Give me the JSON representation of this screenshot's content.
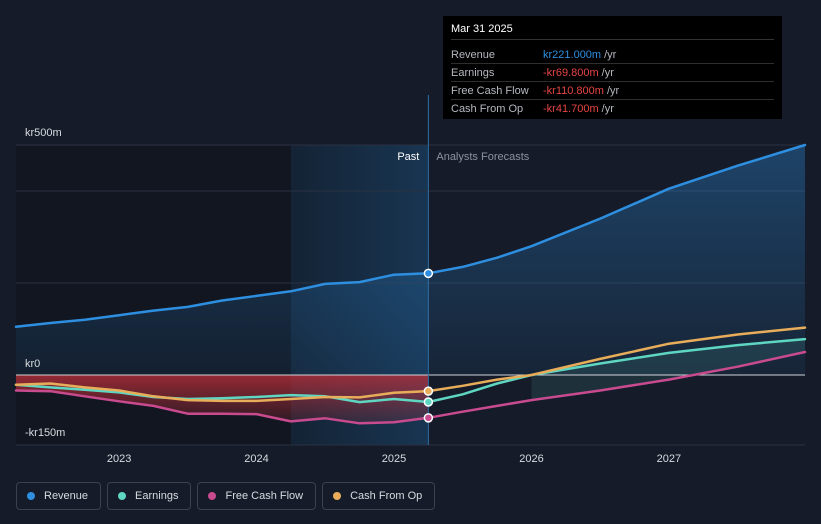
{
  "chart_data": {
    "type": "line",
    "x_axis_ticks": [
      "2023",
      "2024",
      "2025",
      "2026",
      "2027"
    ],
    "y_axis_labels": [
      "kr500m",
      "kr0",
      "-kr150m"
    ],
    "ylim": [
      -150,
      500
    ],
    "xlim": [
      2022.25,
      2027.99
    ],
    "past_label": "Past",
    "forecast_label": "Analysts Forecasts",
    "divider_x": 2025.25,
    "series": [
      {
        "name": "Revenue",
        "color": "#2e8fe0",
        "points": [
          [
            2022.25,
            105
          ],
          [
            2022.5,
            113
          ],
          [
            2022.75,
            120
          ],
          [
            2023.0,
            130
          ],
          [
            2023.25,
            140
          ],
          [
            2023.5,
            148
          ],
          [
            2023.75,
            162
          ],
          [
            2024.0,
            172
          ],
          [
            2024.25,
            182
          ],
          [
            2024.5,
            198
          ],
          [
            2024.75,
            202
          ],
          [
            2025.0,
            218
          ],
          [
            2025.25,
            221
          ],
          [
            2025.5,
            235
          ],
          [
            2025.75,
            255
          ],
          [
            2026.0,
            280
          ],
          [
            2026.5,
            340
          ],
          [
            2027.0,
            405
          ],
          [
            2027.5,
            455
          ],
          [
            2027.99,
            500
          ]
        ]
      },
      {
        "name": "Earnings",
        "color": "#5fd6c2",
        "points": [
          [
            2022.25,
            -25
          ],
          [
            2022.5,
            -32
          ],
          [
            2022.75,
            -38
          ],
          [
            2023.0,
            -45
          ],
          [
            2023.25,
            -57
          ],
          [
            2023.5,
            -62
          ],
          [
            2023.75,
            -60
          ],
          [
            2024.0,
            -57
          ],
          [
            2024.25,
            -52
          ],
          [
            2024.5,
            -55
          ],
          [
            2024.75,
            -70
          ],
          [
            2025.0,
            -62
          ],
          [
            2025.25,
            -69.8
          ],
          [
            2025.5,
            -50
          ],
          [
            2025.75,
            -22
          ],
          [
            2026.0,
            0
          ],
          [
            2026.5,
            25
          ],
          [
            2027.0,
            48
          ],
          [
            2027.5,
            65
          ],
          [
            2027.99,
            78
          ]
        ]
      },
      {
        "name": "Free Cash Flow",
        "color": "#c84a8f",
        "points": [
          [
            2022.25,
            -40
          ],
          [
            2022.5,
            -42
          ],
          [
            2022.75,
            -55
          ],
          [
            2023.0,
            -68
          ],
          [
            2023.25,
            -80
          ],
          [
            2023.5,
            -100
          ],
          [
            2023.75,
            -100
          ],
          [
            2024.0,
            -101
          ],
          [
            2024.25,
            -120
          ],
          [
            2024.5,
            -112
          ],
          [
            2024.75,
            -125
          ],
          [
            2025.0,
            -122
          ],
          [
            2025.25,
            -110.8
          ],
          [
            2025.5,
            -95
          ],
          [
            2025.75,
            -80
          ],
          [
            2026.0,
            -65
          ],
          [
            2026.5,
            -40
          ],
          [
            2027.0,
            -12
          ],
          [
            2027.5,
            18
          ],
          [
            2027.99,
            50
          ]
        ]
      },
      {
        "name": "Cash From Op",
        "color": "#e8ad5a",
        "points": [
          [
            2022.25,
            -25
          ],
          [
            2022.5,
            -22
          ],
          [
            2022.75,
            -32
          ],
          [
            2023.0,
            -40
          ],
          [
            2023.25,
            -55
          ],
          [
            2023.5,
            -65
          ],
          [
            2023.75,
            -67
          ],
          [
            2024.0,
            -67
          ],
          [
            2024.25,
            -62
          ],
          [
            2024.5,
            -57
          ],
          [
            2024.75,
            -58
          ],
          [
            2025.0,
            -46
          ],
          [
            2025.25,
            -41.7
          ],
          [
            2025.5,
            -28
          ],
          [
            2025.75,
            -12
          ],
          [
            2026.0,
            0
          ],
          [
            2026.5,
            35
          ],
          [
            2027.0,
            68
          ],
          [
            2027.5,
            88
          ],
          [
            2027.99,
            103
          ]
        ]
      }
    ]
  },
  "tooltip": {
    "date": "Mar 31 2025",
    "rows": [
      {
        "label": "Revenue",
        "value": "kr221.000m",
        "unit": "/yr",
        "color": "#2e8fe0"
      },
      {
        "label": "Earnings",
        "value": "-kr69.800m",
        "unit": "/yr",
        "color": "#e64545"
      },
      {
        "label": "Free Cash Flow",
        "value": "-kr110.800m",
        "unit": "/yr",
        "color": "#e64545"
      },
      {
        "label": "Cash From Op",
        "value": "-kr41.700m",
        "unit": "/yr",
        "color": "#e64545"
      }
    ]
  },
  "legend": [
    {
      "label": "Revenue",
      "color": "#2e8fe0"
    },
    {
      "label": "Earnings",
      "color": "#5fd6c2"
    },
    {
      "label": "Free Cash Flow",
      "color": "#c84a8f"
    },
    {
      "label": "Cash From Op",
      "color": "#e8ad5a"
    }
  ]
}
